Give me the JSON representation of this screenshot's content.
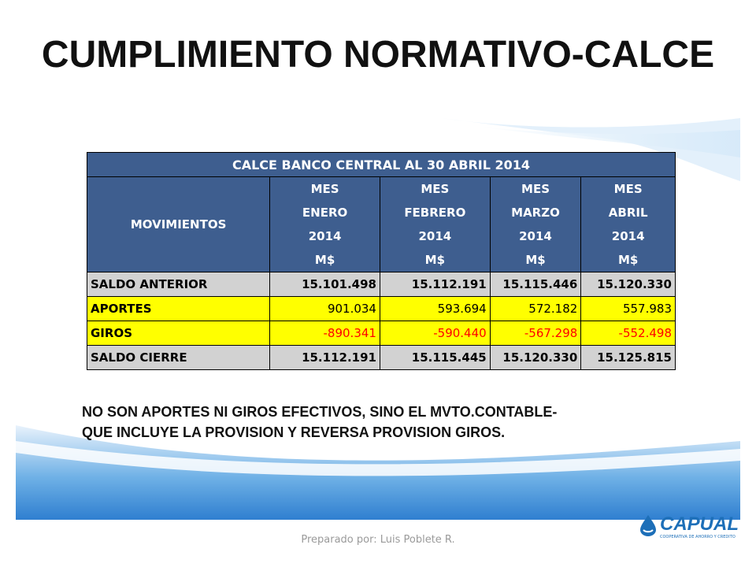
{
  "title": "CUMPLIMIENTO NORMATIVO-CALCE",
  "table": {
    "caption": "CALCE BANCO CENTRAL AL 30 ABRIL 2014",
    "row_header": "MOVIMIENTOS",
    "columns": [
      {
        "line1": "MES",
        "line2": "ENERO",
        "line3": "2014",
        "line4": "M$"
      },
      {
        "line1": "MES",
        "line2": "FEBRERO",
        "line3": "2014",
        "line4": "M$"
      },
      {
        "line1": "MES",
        "line2": "MARZO",
        "line3": "2014",
        "line4": "M$"
      },
      {
        "line1": "MES",
        "line2": "ABRIL",
        "line3": "2014",
        "line4": "M$"
      }
    ],
    "rows": [
      {
        "label": "SALDO ANTERIOR",
        "values": [
          "15.101.498",
          "15.112.191",
          "15.115.446",
          "15.120.330"
        ]
      },
      {
        "label": "APORTES",
        "values": [
          "901.034",
          "593.694",
          "572.182",
          "557.983"
        ]
      },
      {
        "label": "GIROS",
        "values": [
          "-890.341",
          "-590.440",
          "-567.298",
          "-552.498"
        ]
      },
      {
        "label": "SALDO CIERRE",
        "values": [
          "15.112.191",
          "15.115.445",
          "15.120.330",
          "15.125.815"
        ]
      }
    ]
  },
  "note_line1": "NO SON APORTES NI GIROS EFECTIVOS, SINO EL MVTO.CONTABLE-",
  "note_line2": "QUE INCLUYE LA PROVISION Y REVERSA PROVISION GIROS.",
  "footer": "Preparado por: Luis Poblete R.",
  "logo": {
    "name": "CAPUAL",
    "tagline": "COOPERATIVA DE AHORRO Y CREDITO"
  },
  "colors": {
    "header_blue": "#3e5e8f",
    "highlight_yellow": "#ffff00",
    "negative_red": "#ff0000",
    "row_gray": "#d2d2d2",
    "wave_blue": "#3b8fd6"
  }
}
